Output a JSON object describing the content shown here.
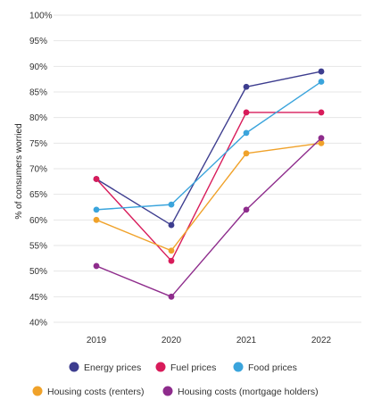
{
  "chart_data": {
    "type": "line",
    "title": "",
    "xlabel": "",
    "ylabel": "% of consumers worried",
    "categories": [
      "2019",
      "2020",
      "2021",
      "2022"
    ],
    "y_ticks": [
      "100%",
      "95%",
      "90%",
      "85%",
      "80%",
      "75%",
      "70%",
      "65%",
      "60%",
      "55%",
      "50%",
      "45%",
      "40%"
    ],
    "ylim": [
      40,
      100
    ],
    "grid": "horizontal",
    "legend_position": "bottom",
    "series": [
      {
        "name": "Energy prices",
        "color": "#3d3d8f",
        "values": [
          68,
          59,
          86,
          89
        ]
      },
      {
        "name": "Fuel prices",
        "color": "#d81b5a",
        "values": [
          68,
          52,
          81,
          81
        ]
      },
      {
        "name": "Food prices",
        "color": "#3aa4dc",
        "values": [
          62,
          63,
          77,
          87
        ]
      },
      {
        "name": "Housing costs (renters)",
        "color": "#f0a22a",
        "values": [
          60,
          54,
          73,
          75
        ]
      },
      {
        "name": "Housing costs (mortgage holders)",
        "color": "#8e2c8c",
        "values": [
          51,
          45,
          62,
          76
        ]
      }
    ]
  }
}
